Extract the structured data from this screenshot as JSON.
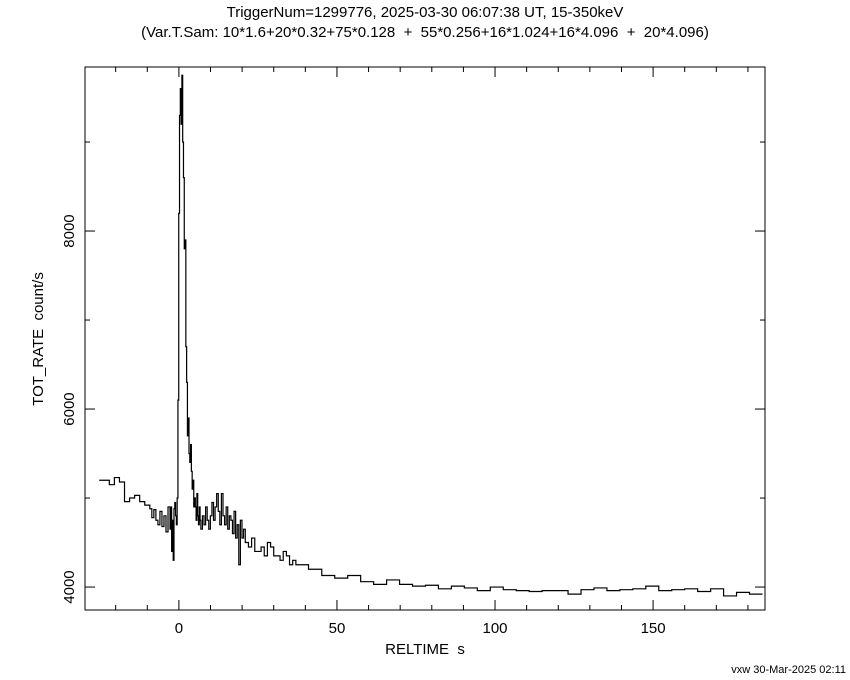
{
  "chart_data": {
    "type": "step",
    "title": "TriggerNum=1299776, 2025-03-30 06:07:38 UT, 15-350keV",
    "subtitle": "(Var.T.Sam: 10*1.6+20*0.32+75*0.128  +  55*0.256+16*1.024+16*4.096  +  20*4.096)",
    "xlabel": "RELTIME  s",
    "ylabel": "TOT_RATE  count/s",
    "footer": "vxw 30-Mar-2025 02:11",
    "color": "#000000",
    "xlim": [
      -29.7,
      185.4
    ],
    "ylim": [
      3742,
      9843
    ],
    "xticks": [
      0,
      50,
      100,
      150
    ],
    "yticks": [
      4000,
      6000,
      8000
    ],
    "xminorticks": [
      -20,
      -10,
      10,
      20,
      30,
      40,
      60,
      70,
      80,
      90,
      110,
      120,
      130,
      140,
      160,
      170,
      180
    ],
    "yminorticks": [
      5000,
      7000,
      9000
    ],
    "x": [
      -25.2,
      -23.6,
      -22.0,
      -20.4,
      -18.8,
      -17.2,
      -15.6,
      -14.0,
      -12.4,
      -10.8,
      -9.2,
      -8.56,
      -7.92,
      -7.28,
      -6.64,
      -6.0,
      -5.36,
      -4.72,
      -4.08,
      -3.44,
      -2.8,
      -2.55,
      -2.3,
      -2.05,
      -1.8,
      -1.55,
      -1.3,
      -1.05,
      -0.8,
      -0.55,
      -0.3,
      -0.05,
      0.2,
      0.45,
      0.7,
      0.95,
      1.2,
      1.45,
      1.7,
      1.95,
      2.2,
      2.45,
      2.7,
      2.95,
      3.2,
      3.45,
      3.7,
      3.95,
      4.2,
      4.45,
      4.7,
      4.95,
      5.2,
      5.45,
      5.7,
      5.95,
      6.2,
      6.45,
      6.7,
      6.95,
      7.45,
      7.95,
      8.45,
      8.95,
      9.45,
      9.95,
      10.45,
      10.95,
      11.45,
      11.95,
      12.45,
      12.95,
      13.45,
      13.95,
      14.45,
      14.95,
      15.45,
      15.95,
      16.45,
      16.95,
      17.45,
      17.95,
      18.45,
      18.95,
      19.45,
      19.95,
      20.45,
      21,
      22,
      23,
      24,
      25,
      26,
      27,
      28,
      29,
      30,
      31,
      32,
      33,
      34,
      35,
      36,
      37,
      41,
      45.2,
      49.3,
      53.4,
      57.5,
      61.6,
      65.7,
      69.8,
      73.9,
      78,
      82.1,
      86.2,
      90.3,
      94.4,
      98.5,
      102.6,
      106.7,
      110.8,
      114.9,
      119,
      123.1,
      127.2,
      131.3,
      135.4,
      139.5,
      143.6,
      147.7,
      151.8,
      155.9,
      160,
      164.1,
      168.2,
      172.3,
      176.4,
      180.5
    ],
    "values": [
      5200,
      5200,
      5150,
      5230,
      5180,
      4960,
      5000,
      5030,
      4960,
      4920,
      4880,
      4780,
      4870,
      4750,
      4700,
      4850,
      4680,
      4800,
      4620,
      4900,
      4650,
      4900,
      4400,
      4750,
      4300,
      4880,
      4950,
      4800,
      4700,
      5000,
      6100,
      8200,
      9300,
      9600,
      9200,
      9750,
      9000,
      8600,
      7800,
      7900,
      6700,
      6300,
      5700,
      5900,
      5500,
      5400,
      5600,
      5300,
      5100,
      5200,
      4900,
      5000,
      4900,
      4750,
      5050,
      4800,
      4700,
      4900,
      4750,
      4650,
      4800,
      4700,
      4900,
      4750,
      4650,
      4800,
      4950,
      4750,
      4900,
      5050,
      4850,
      4700,
      5050,
      4800,
      4700,
      4900,
      4650,
      4800,
      4750,
      4600,
      4850,
      4550,
      4700,
      4250,
      4750,
      4550,
      4650,
      4500,
      4450,
      4550,
      4400,
      4400,
      4450,
      4350,
      4500,
      4450,
      4350,
      4350,
      4300,
      4400,
      4350,
      4250,
      4300,
      4250,
      4200,
      4130,
      4100,
      4130,
      4060,
      4030,
      4080,
      4030,
      4010,
      4020,
      3980,
      4010,
      3990,
      3960,
      4000,
      3970,
      3960,
      3950,
      3960,
      3960,
      3920,
      3970,
      3990,
      3960,
      3970,
      3980,
      4010,
      3960,
      3970,
      3980,
      3950,
      3980,
      3900,
      3940,
      3920
    ]
  }
}
